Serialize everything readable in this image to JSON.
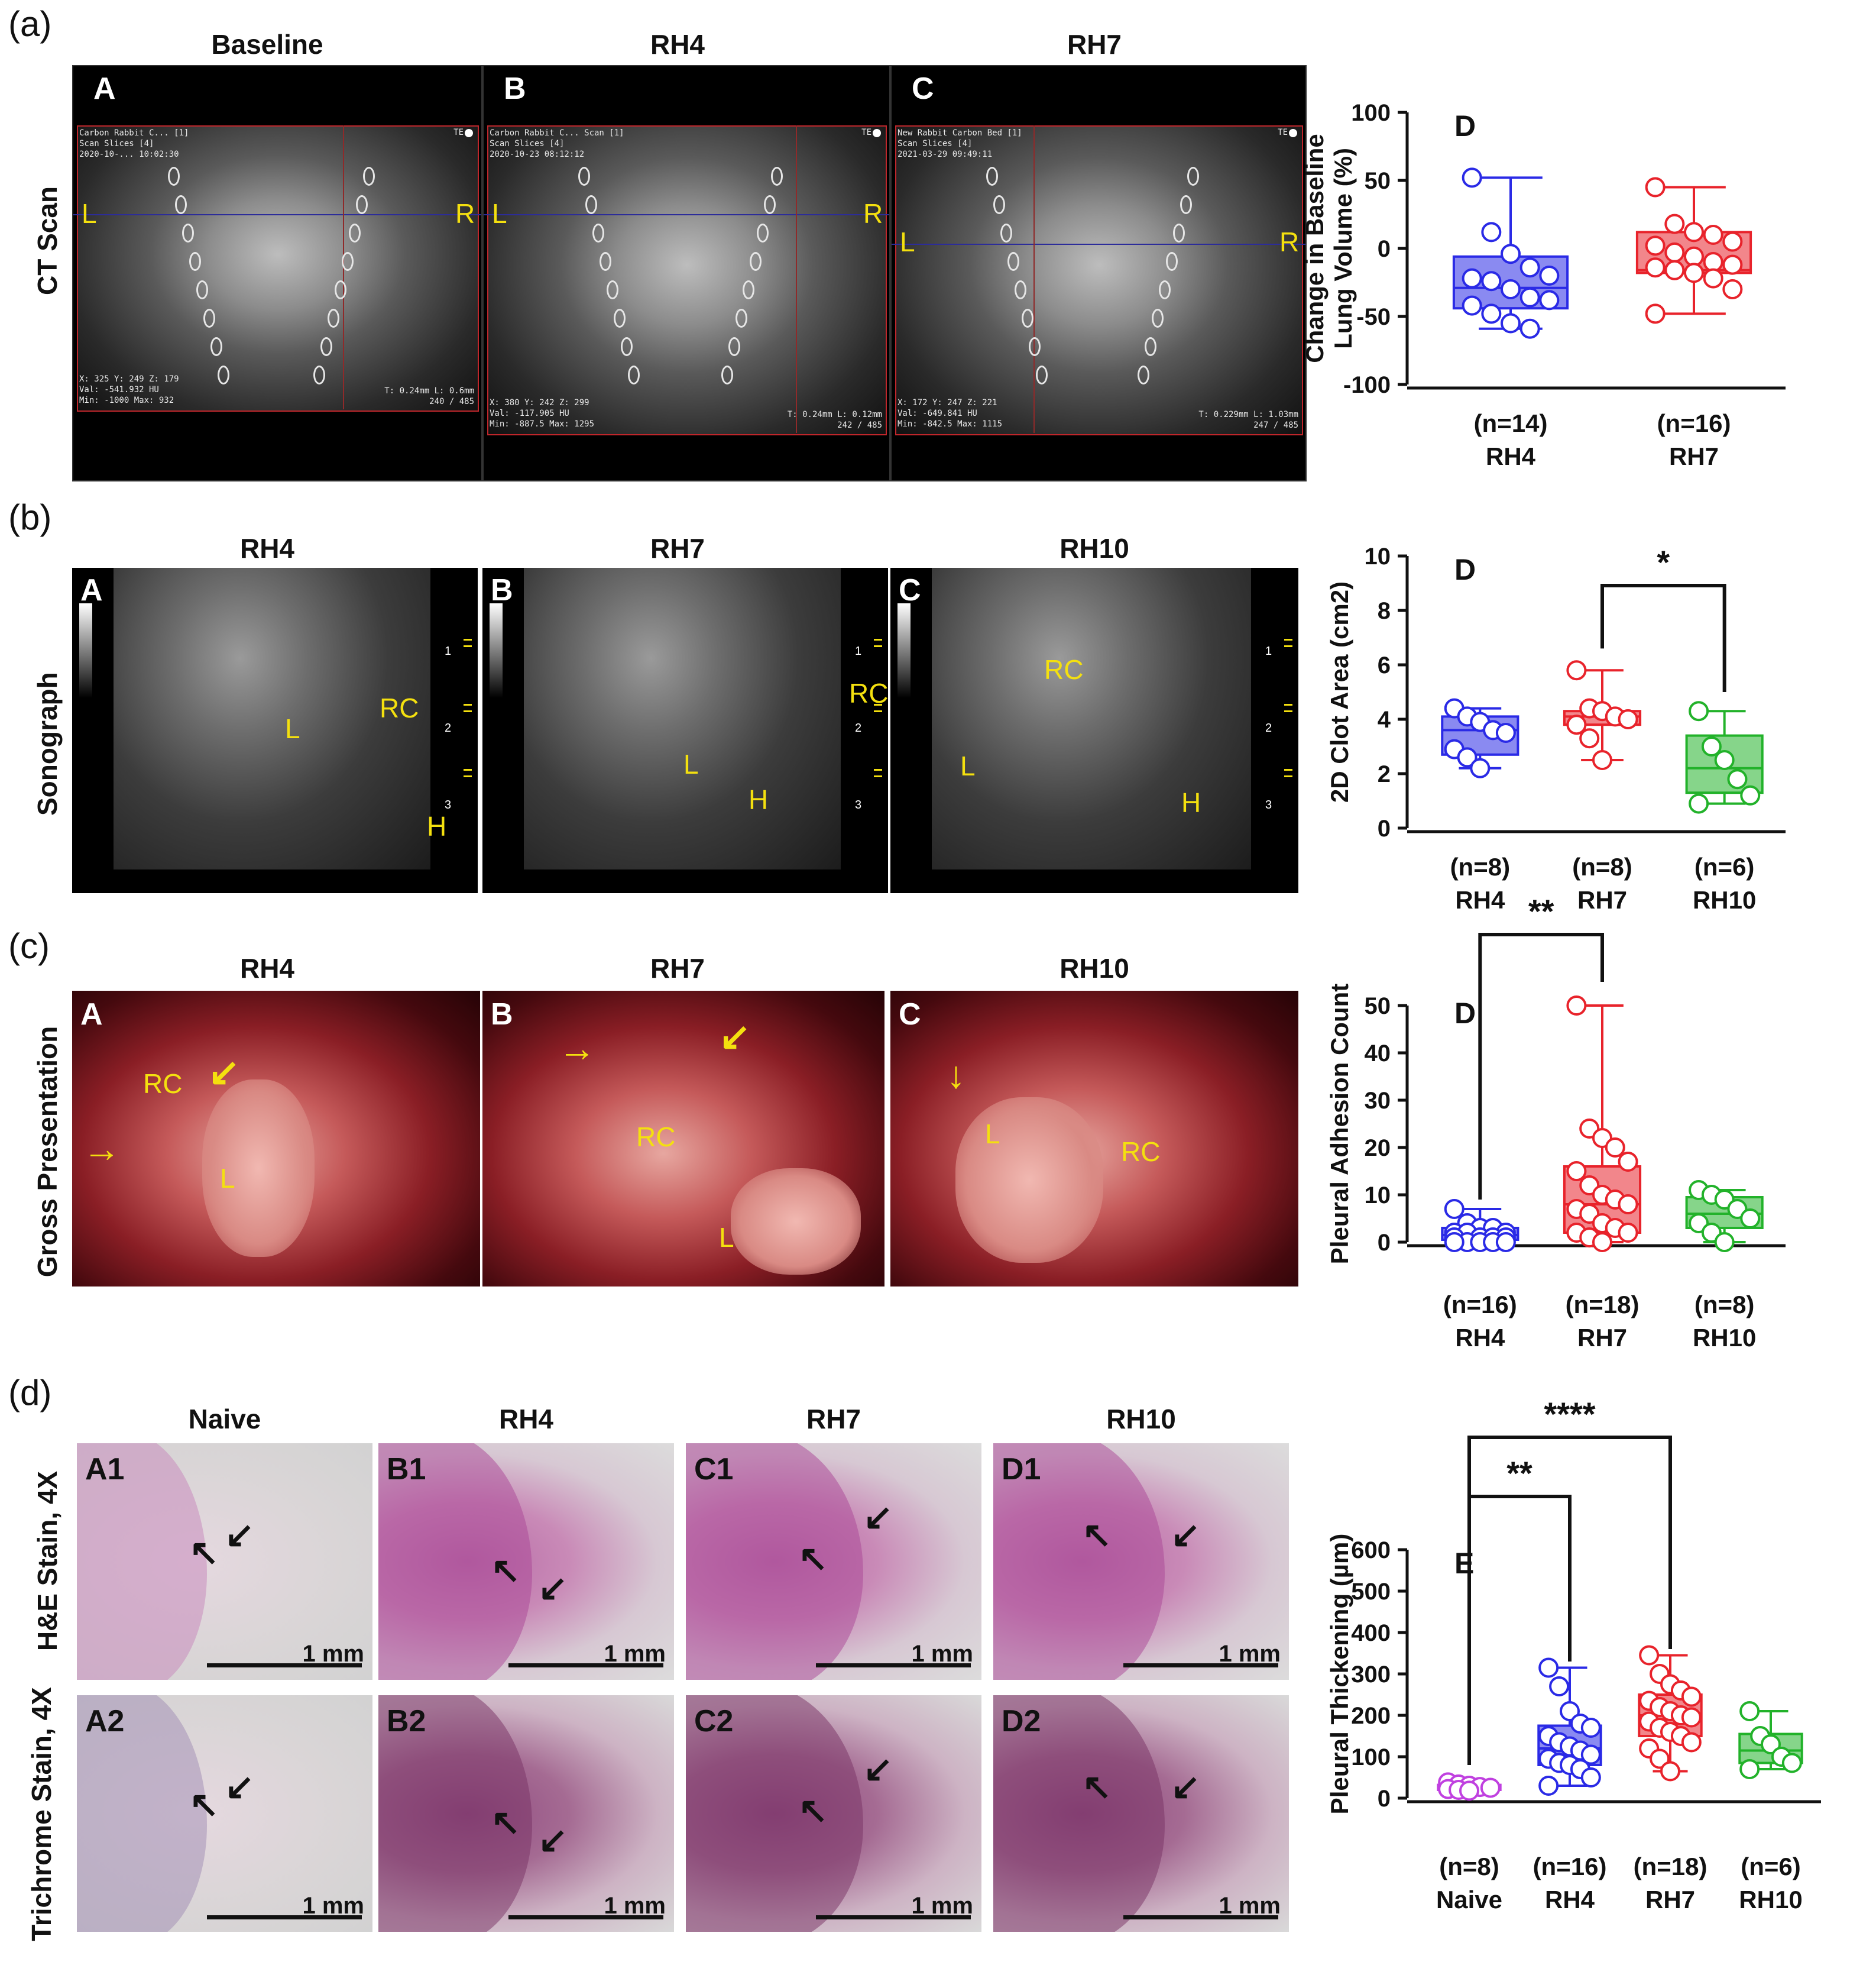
{
  "sections": {
    "a": {
      "letter": "(a)",
      "row_label": "CT Scan",
      "columns": [
        "Baseline",
        "RH4",
        "RH7"
      ],
      "panels": [
        {
          "letter": "A",
          "left": "L",
          "right": "R",
          "info_top": [
            "Carbon Rabbit C... [1]",
            "Scan Slices [4]",
            "2020-10-... 10:02:30"
          ],
          "info_bottom": [
            "X: 325 Y: 249 Z: 179",
            "Val: -541.932 HU",
            "Min: -1000 Max: 932"
          ],
          "info_right": [
            "T: 0.24mm L: 0.6mm",
            "240 / 485"
          ],
          "orient_top": "TE"
        },
        {
          "letter": "B",
          "left": "L",
          "right": "R",
          "info_top": [
            "Carbon Rabbit C... Scan [1]",
            "Scan Slices [4]",
            "2020-10-23 08:12:12"
          ],
          "info_bottom": [
            "X: 380 Y: 242 Z: 299",
            "Val: -117.905 HU",
            "Min: -887.5 Max: 1295"
          ],
          "info_right": [
            "T: 0.24mm L: 0.12mm",
            "242 / 485"
          ],
          "orient_top": "TE"
        },
        {
          "letter": "C",
          "left": "L",
          "right": "R",
          "info_top": [
            "New Rabbit Carbon Bed [1]",
            "Scan Slices [4]",
            "2021-03-29 09:49:11"
          ],
          "info_bottom": [
            "X: 172 Y: 247 Z: 221",
            "Val: -649.841 HU",
            "Min: -842.5 Max: 1115"
          ],
          "info_right": [
            "T: 0.229mm L: 1.03mm",
            "247 / 485"
          ],
          "orient_top": "TE"
        }
      ]
    },
    "b": {
      "letter": "(b)",
      "row_label": "Sonograph",
      "columns": [
        "RH4",
        "RH7",
        "RH10"
      ],
      "panels": [
        {
          "letter": "A",
          "labels": [
            "L",
            "RC",
            "H"
          ],
          "ticks": [
            "1",
            "2",
            "3"
          ]
        },
        {
          "letter": "B",
          "labels": [
            "RC",
            "L",
            "H"
          ],
          "ticks": [
            "1",
            "2",
            "3"
          ]
        },
        {
          "letter": "C",
          "labels": [
            "RC",
            "L",
            "H"
          ],
          "ticks": [
            "1",
            "2",
            "3"
          ]
        }
      ]
    },
    "c": {
      "letter": "(c)",
      "row_label": "Gross Presentation",
      "columns": [
        "RH4",
        "RH7",
        "RH10"
      ],
      "panels": [
        {
          "letter": "A",
          "labels": [
            "RC",
            "L"
          ]
        },
        {
          "letter": "B",
          "labels": [
            "RC",
            "L"
          ]
        },
        {
          "letter": "C",
          "labels": [
            "L",
            "RC"
          ]
        }
      ]
    },
    "d": {
      "letter": "(d)",
      "row_labels": [
        "H&E Stain, 4X",
        "Trichrome Stain, 4X"
      ],
      "columns": [
        "Naive",
        "RH4",
        "RH7",
        "RH10"
      ],
      "panels_row1": [
        "A1",
        "B1",
        "C1",
        "D1"
      ],
      "panels_row2": [
        "A2",
        "B2",
        "C2",
        "D2"
      ],
      "scale": "1 mm"
    }
  },
  "colors": {
    "RH4": "#2a2ae6",
    "RH7": "#e8232b",
    "RH10": "#22b22a",
    "Naive": "#c040e0",
    "yellow_label": "#f4e00f"
  },
  "chart_data": [
    {
      "id": "ct-volume",
      "type": "box",
      "panel_letter": "D",
      "ylabel": "Change in Baseline Lung Volume (%)",
      "ylim": [
        -100,
        100
      ],
      "yticks": [
        -100,
        -50,
        0,
        50,
        100
      ],
      "groups": [
        {
          "name": "RH4",
          "n": "(n=14)",
          "min": -59,
          "q1": -44,
          "median": -29,
          "q3": -6,
          "max": 52,
          "points": [
            52,
            12,
            -4,
            -14,
            -20,
            -22,
            -24,
            -30,
            -36,
            -38,
            -42,
            -48,
            -55,
            -59
          ]
        },
        {
          "name": "RH7",
          "n": "(n=16)",
          "min": -48,
          "q1": -18,
          "median": -16,
          "q3": 12,
          "max": 45,
          "points": [
            45,
            18,
            12,
            10,
            5,
            2,
            -3,
            -6,
            -10,
            -12,
            -14,
            -16,
            -18,
            -22,
            -30,
            -48
          ]
        }
      ]
    },
    {
      "id": "clot-area",
      "type": "box",
      "panel_letter": "D",
      "ylabel": "2D Clot Area (cm2)",
      "ylim": [
        0,
        10
      ],
      "yticks": [
        0,
        2,
        4,
        6,
        8,
        10
      ],
      "significance": [
        {
          "from": "RH7",
          "to": "RH10",
          "label": "*"
        }
      ],
      "groups": [
        {
          "name": "RH4",
          "n": "(n=8)",
          "min": 2.2,
          "q1": 2.7,
          "median": 3.6,
          "q3": 4.1,
          "max": 4.4,
          "points": [
            4.4,
            4.1,
            3.9,
            3.6,
            3.5,
            2.9,
            2.6,
            2.2
          ]
        },
        {
          "name": "RH7",
          "n": "(n=8)",
          "min": 2.5,
          "q1": 3.8,
          "median": 4.1,
          "q3": 4.3,
          "max": 5.8,
          "points": [
            5.8,
            4.4,
            4.3,
            4.1,
            4.0,
            3.8,
            3.3,
            2.5
          ]
        },
        {
          "name": "RH10",
          "n": "(n=6)",
          "min": 0.9,
          "q1": 1.3,
          "median": 2.2,
          "q3": 3.4,
          "max": 4.3,
          "points": [
            4.3,
            3.0,
            2.5,
            1.8,
            1.2,
            0.9
          ]
        }
      ]
    },
    {
      "id": "adhesion-count",
      "type": "box",
      "panel_letter": "D",
      "ylabel": "Pleural Adhesion Count",
      "ylim": [
        0,
        50
      ],
      "yticks": [
        0,
        10,
        20,
        30,
        40,
        50
      ],
      "significance": [
        {
          "from": "RH4",
          "to": "RH7",
          "label": "**"
        }
      ],
      "groups": [
        {
          "name": "RH4",
          "n": "(n=16)",
          "min": 0,
          "q1": 0.5,
          "median": 1.5,
          "q3": 3,
          "max": 7,
          "points": [
            7,
            4,
            3,
            3,
            2,
            2,
            2,
            1,
            1,
            1,
            1,
            0,
            0,
            0,
            0,
            0
          ]
        },
        {
          "name": "RH7",
          "n": "(n=18)",
          "min": 0,
          "q1": 2,
          "median": 8,
          "q3": 16,
          "max": 50,
          "points": [
            50,
            24,
            22,
            20,
            17,
            15,
            12,
            10,
            9,
            8,
            7,
            6,
            4,
            3,
            2,
            2,
            1,
            0
          ]
        },
        {
          "name": "RH10",
          "n": "(n=8)",
          "min": 0,
          "q1": 3,
          "median": 6,
          "q3": 9.5,
          "max": 11,
          "points": [
            11,
            10,
            9,
            7,
            5,
            4,
            2,
            0
          ]
        }
      ]
    },
    {
      "id": "pleural-thickening",
      "type": "box",
      "panel_letter": "E",
      "ylabel": "Pleural Thickening (µm)",
      "ylim": [
        0,
        600
      ],
      "yticks": [
        0,
        100,
        200,
        300,
        400,
        500,
        600
      ],
      "significance": [
        {
          "from": "Naive",
          "to": "RH4",
          "label": "**"
        },
        {
          "from": "Naive",
          "to": "RH7",
          "label": "****"
        }
      ],
      "groups": [
        {
          "name": "Naive",
          "n": "(n=8)",
          "min": 18,
          "q1": 20,
          "median": 25,
          "q3": 32,
          "max": 38,
          "points": [
            38,
            33,
            30,
            27,
            25,
            22,
            20,
            18
          ]
        },
        {
          "name": "RH4",
          "n": "(n=16)",
          "min": 30,
          "q1": 80,
          "median": 120,
          "q3": 175,
          "max": 315,
          "points": [
            315,
            270,
            210,
            180,
            170,
            150,
            135,
            125,
            115,
            105,
            95,
            85,
            80,
            70,
            50,
            30
          ]
        },
        {
          "name": "RH7",
          "n": "(n=18)",
          "min": 65,
          "q1": 150,
          "median": 200,
          "q3": 250,
          "max": 345,
          "points": [
            345,
            300,
            275,
            260,
            245,
            235,
            220,
            210,
            200,
            195,
            185,
            170,
            160,
            150,
            135,
            120,
            95,
            65
          ]
        },
        {
          "name": "RH10",
          "n": "(n=6)",
          "min": 70,
          "q1": 85,
          "median": 115,
          "q3": 155,
          "max": 210,
          "points": [
            210,
            150,
            130,
            100,
            85,
            70
          ]
        }
      ]
    }
  ]
}
